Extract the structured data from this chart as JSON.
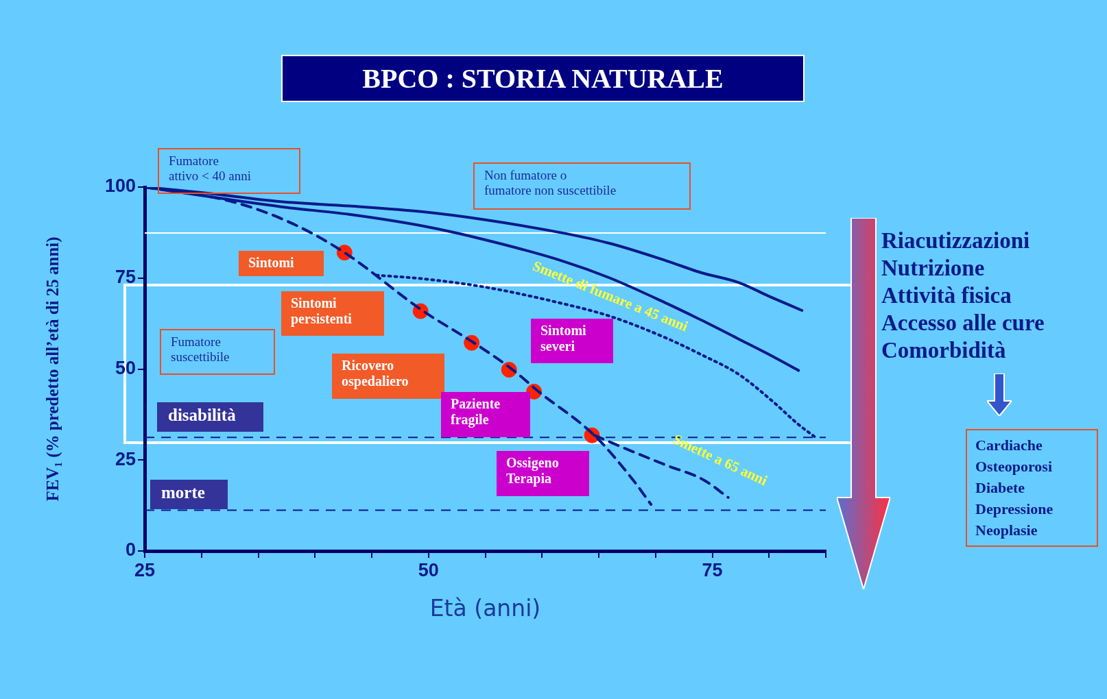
{
  "chart_data": {
    "type": "line",
    "title": "BPCO : STORIA NATURALE",
    "xlabel": "Età (anni)",
    "ylabel": "FEV₁ (% predetto all’età di 25 anni)",
    "xlim": [
      25,
      85
    ],
    "ylim": [
      0,
      100
    ],
    "xticks": [
      25,
      {
        "value": 30,
        "label": null
      },
      {
        "value": 35,
        "label": null
      },
      {
        "value": 40,
        "label": null
      },
      {
        "value": 45,
        "label": null
      },
      50,
      {
        "value": 55,
        "label": null
      },
      {
        "value": 60,
        "label": null
      },
      {
        "value": 65,
        "label": null
      },
      {
        "value": 70,
        "label": null
      },
      75,
      {
        "value": 80,
        "label": null
      },
      {
        "value": 85,
        "label": null
      }
    ],
    "yticks": [
      0,
      25,
      50,
      75,
      100
    ],
    "grid": false,
    "marker": "none",
    "line_style": "solid",
    "series": [
      {
        "type": "line",
        "color": "#0a1a8a",
        "x": [
          25,
          30,
          37,
          43,
          49.5,
          55,
          61.8,
          66,
          71,
          74,
          77.3,
          80,
          82.9
        ],
        "values": [
          100,
          98.5,
          96,
          94.8,
          93.2,
          91,
          87.4,
          84.5,
          79.7,
          76.5,
          73.8,
          70,
          66.1
        ]
      },
      {
        "type": "line",
        "color": "#0a1a8a",
        "x": [
          25,
          37,
          43,
          49.5,
          55,
          61.8,
          66,
          71,
          74,
          77.3,
          80,
          82.6
        ],
        "values": [
          100,
          94.6,
          92.5,
          89.3,
          85.5,
          79.7,
          75,
          68,
          63.5,
          58.3,
          54,
          49.6
        ]
      },
      {
        "type": "line",
        "color": "#0a1a8a",
        "line_style": "dashed",
        "x": [
          25,
          32.7,
          38,
          42.6,
          49.5,
          54.1,
          57.5,
          59.7,
          64.6,
          68,
          69.6
        ],
        "values": [
          100,
          96,
          90,
          82,
          66,
          57,
          49.6,
          43.8,
          31.8,
          19.6,
          12.8
        ]
      },
      {
        "type": "line",
        "color": "#0a1a8a",
        "line_style": "dotted",
        "x": [
          45.4,
          49.5,
          55,
          61.8,
          66,
          71.1,
          74,
          77.3,
          80.4,
          82.5,
          84.1
        ],
        "values": [
          75.8,
          74.8,
          72.5,
          68,
          64.5,
          58.3,
          54,
          48.6,
          40.9,
          35,
          31.2
        ]
      },
      {
        "type": "line",
        "color": "#0a1a8a",
        "line_style": "dashed",
        "x": [
          64.6,
          68,
          71,
          74.2,
          76.4
        ],
        "values": [
          31.8,
          27.3,
          23.5,
          19.6,
          14.7
        ]
      },
      {
        "type": "scatter",
        "color": "#ff2200",
        "marker": "circle",
        "x": [
          42.6,
          49.3,
          53.8,
          57.1,
          59.3,
          64.4
        ],
        "values": [
          82,
          65.9,
          57.2,
          49.8,
          43.8,
          31.8
        ]
      }
    ],
    "ref_lines": [
      {
        "axis": "y",
        "value": 87.4,
        "color": "#ffffff",
        "line_style": "solid"
      },
      {
        "axis": "y",
        "value": 31.2,
        "color": "#0a1a8a",
        "line_style": "dashed"
      },
      {
        "axis": "y",
        "value": 11.2,
        "color": "#0a1a8a",
        "line_style": "dashed"
      }
    ],
    "annotations": [
      "Fumatore\nattivo < 40 anni",
      "Non fumatore o\nfumatore non suscettibile",
      "Sintomi",
      "Sintomi\npersistenti",
      "Fumatore\nsuscettibile",
      "Ricovero\nospedaliero",
      "Sintomi\nseveri",
      "Paziente\nfragile",
      "Ossigeno\nTerapia",
      "disabilità",
      "morte",
      "Smette di fumare a 45 anni",
      "Smette a 65 anni",
      "Riacutizzazioni\nNutrizione\nAttività fisica\nAccesso alle cure\nComorbidità",
      "Cardiache\nOsteoporosi\nDiabete\nDepressione\nNeoplasie"
    ]
  }
}
